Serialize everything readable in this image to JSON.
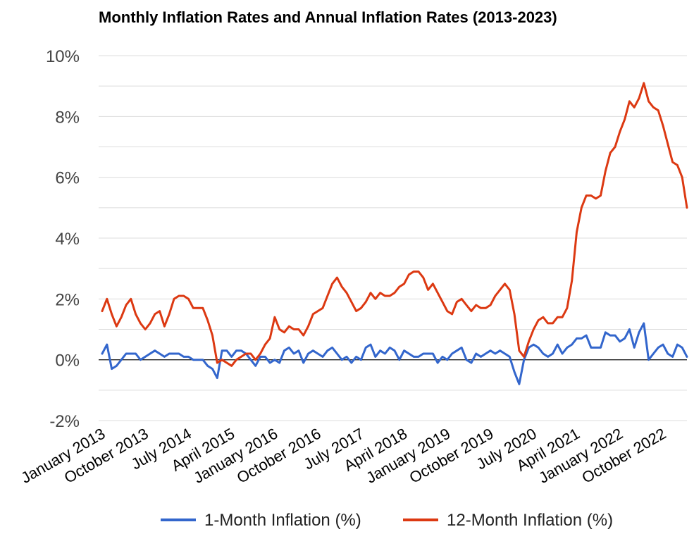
{
  "chart_data": {
    "type": "line",
    "title": "Monthly Inflation Rates and Annual Inflation Rates (2013-2023)",
    "xlabel": "",
    "ylabel": "",
    "ylim": [
      -2,
      10
    ],
    "y_ticks": [
      -2,
      0,
      2,
      4,
      6,
      8,
      10
    ],
    "y_tick_labels": [
      "-2%",
      "0%",
      "2%",
      "4%",
      "6%",
      "8%",
      "10%"
    ],
    "x_tick_labels": [
      "January 2013",
      "October 2013",
      "July 2014",
      "April 2015",
      "January 2016",
      "October 2016",
      "July 2017",
      "April 2018",
      "January 2019",
      "October 2019",
      "July 2020",
      "April 2021",
      "January 2022",
      "October 2022"
    ],
    "x_start": "January 2013",
    "grid": true,
    "legend_position": "bottom",
    "series": [
      {
        "name": "1-Month Inflation (%)",
        "color": "#3366cc",
        "values": [
          0.2,
          0.5,
          -0.3,
          -0.2,
          0.0,
          0.2,
          0.2,
          0.2,
          0.0,
          0.1,
          0.2,
          0.3,
          0.2,
          0.1,
          0.2,
          0.2,
          0.2,
          0.1,
          0.1,
          0.0,
          0.0,
          0.0,
          -0.2,
          -0.3,
          -0.6,
          0.3,
          0.3,
          0.1,
          0.3,
          0.3,
          0.2,
          0.0,
          -0.2,
          0.1,
          0.1,
          -0.1,
          0.0,
          -0.1,
          0.3,
          0.4,
          0.2,
          0.3,
          -0.1,
          0.2,
          0.3,
          0.2,
          0.1,
          0.3,
          0.4,
          0.2,
          0.0,
          0.1,
          -0.1,
          0.1,
          0.0,
          0.4,
          0.5,
          0.1,
          0.3,
          0.2,
          0.4,
          0.3,
          0.0,
          0.3,
          0.2,
          0.1,
          0.1,
          0.2,
          0.2,
          0.2,
          -0.1,
          0.1,
          0.0,
          0.2,
          0.3,
          0.4,
          0.0,
          -0.1,
          0.2,
          0.1,
          0.2,
          0.3,
          0.2,
          0.3,
          0.2,
          0.1,
          -0.4,
          -0.8,
          0.0,
          0.4,
          0.5,
          0.4,
          0.2,
          0.1,
          0.2,
          0.5,
          0.2,
          0.4,
          0.5,
          0.7,
          0.7,
          0.8,
          0.4,
          0.4,
          0.4,
          0.9,
          0.8,
          0.8,
          0.6,
          0.7,
          1.0,
          0.4,
          0.9,
          1.2,
          0.0,
          0.2,
          0.4,
          0.5,
          0.2,
          0.1,
          0.5,
          0.4,
          0.1
        ]
      },
      {
        "name": "12-Month Inflation (%)",
        "color": "#dc3912",
        "values": [
          1.6,
          2.0,
          1.5,
          1.1,
          1.4,
          1.8,
          2.0,
          1.5,
          1.2,
          1.0,
          1.2,
          1.5,
          1.6,
          1.1,
          1.5,
          2.0,
          2.1,
          2.1,
          2.0,
          1.7,
          1.7,
          1.7,
          1.3,
          0.8,
          -0.1,
          0.0,
          -0.1,
          -0.2,
          0.0,
          0.1,
          0.2,
          0.2,
          0.0,
          0.2,
          0.5,
          0.7,
          1.4,
          1.0,
          0.9,
          1.1,
          1.0,
          1.0,
          0.8,
          1.1,
          1.5,
          1.6,
          1.7,
          2.1,
          2.5,
          2.7,
          2.4,
          2.2,
          1.9,
          1.6,
          1.7,
          1.9,
          2.2,
          2.0,
          2.2,
          2.1,
          2.1,
          2.2,
          2.4,
          2.5,
          2.8,
          2.9,
          2.9,
          2.7,
          2.3,
          2.5,
          2.2,
          1.9,
          1.6,
          1.5,
          1.9,
          2.0,
          1.8,
          1.6,
          1.8,
          1.7,
          1.7,
          1.8,
          2.1,
          2.3,
          2.5,
          2.3,
          1.5,
          0.3,
          0.1,
          0.6,
          1.0,
          1.3,
          1.4,
          1.2,
          1.2,
          1.4,
          1.4,
          1.7,
          2.6,
          4.2,
          5.0,
          5.4,
          5.4,
          5.3,
          5.4,
          6.2,
          6.8,
          7.0,
          7.5,
          7.9,
          8.5,
          8.3,
          8.6,
          9.1,
          8.5,
          8.3,
          8.2,
          7.7,
          7.1,
          6.5,
          6.4,
          6.0,
          5.0
        ]
      }
    ]
  }
}
